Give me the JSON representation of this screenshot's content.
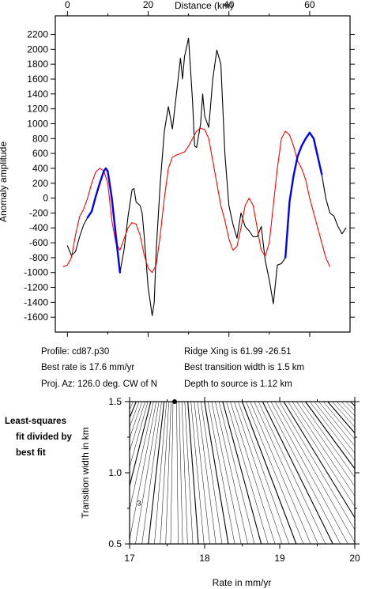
{
  "chart_data": [
    {
      "type": "line",
      "xlabel_top": "Distance (km)",
      "ylabel": "Anomaly amplitude",
      "xlim": [
        -3,
        70
      ],
      "ylim": [
        -1800,
        2450
      ],
      "x_ticks": [
        0,
        20,
        40,
        60
      ],
      "y_ticks": [
        -1600,
        -1400,
        -1200,
        -1000,
        -800,
        -600,
        -400,
        -200,
        0,
        200,
        400,
        600,
        800,
        1000,
        1200,
        1400,
        1600,
        1800,
        2000,
        2200
      ],
      "series": [
        {
          "role": "observed",
          "color": "#000000",
          "points": [
            [
              0,
              -640
            ],
            [
              1,
              -770
            ],
            [
              2,
              -720
            ],
            [
              3,
              -520
            ],
            [
              4,
              -360
            ],
            [
              5,
              -260
            ],
            [
              6,
              -180
            ],
            [
              7,
              20
            ],
            [
              8,
              200
            ],
            [
              9,
              360
            ],
            [
              9.5,
              400
            ],
            [
              10,
              360
            ],
            [
              11,
              0
            ],
            [
              12,
              -500
            ],
            [
              13,
              -1000
            ],
            [
              14,
              -700
            ],
            [
              15,
              -250
            ],
            [
              16,
              110
            ],
            [
              16.5,
              130
            ],
            [
              17,
              -50
            ],
            [
              18,
              -100
            ],
            [
              18.5,
              -200
            ],
            [
              19,
              -500
            ],
            [
              20,
              -1200
            ],
            [
              21,
              -1580
            ],
            [
              21.5,
              -1400
            ],
            [
              22,
              -700
            ],
            [
              23,
              200
            ],
            [
              24,
              900
            ],
            [
              25,
              1230
            ],
            [
              26,
              930
            ],
            [
              27,
              1400
            ],
            [
              28,
              1880
            ],
            [
              28.5,
              1600
            ],
            [
              29,
              1900
            ],
            [
              30,
              2150
            ],
            [
              31,
              1300
            ],
            [
              31.5,
              700
            ],
            [
              32,
              680
            ],
            [
              33,
              1000
            ],
            [
              33.5,
              1400
            ],
            [
              34,
              1100
            ],
            [
              35,
              950
            ],
            [
              36,
              1600
            ],
            [
              37,
              1990
            ],
            [
              38,
              1800
            ],
            [
              39,
              600
            ],
            [
              40,
              -100
            ],
            [
              41,
              -350
            ],
            [
              42,
              -540
            ],
            [
              43,
              -200
            ],
            [
              44,
              -380
            ],
            [
              45,
              -440
            ],
            [
              46,
              -520
            ],
            [
              47,
              -520
            ],
            [
              48,
              -380
            ],
            [
              49,
              -840
            ],
            [
              50,
              -1100
            ],
            [
              51,
              -1420
            ],
            [
              52,
              -900
            ],
            [
              53,
              -880
            ],
            [
              54,
              -800
            ],
            [
              55,
              -50
            ],
            [
              56,
              300
            ],
            [
              57,
              560
            ],
            [
              58,
              700
            ],
            [
              59,
              800
            ],
            [
              60,
              880
            ],
            [
              61,
              800
            ],
            [
              62,
              560
            ],
            [
              63,
              320
            ],
            [
              64,
              0
            ],
            [
              65,
              -200
            ],
            [
              66,
              -240
            ],
            [
              67,
              -380
            ],
            [
              68,
              -480
            ],
            [
              69,
              -400
            ]
          ]
        },
        {
          "role": "model",
          "color": "#ff0000",
          "points": [
            [
              -1,
              -920
            ],
            [
              0,
              -900
            ],
            [
              1,
              -800
            ],
            [
              2,
              -500
            ],
            [
              3,
              -250
            ],
            [
              4,
              -150
            ],
            [
              5,
              0
            ],
            [
              6,
              200
            ],
            [
              7,
              350
            ],
            [
              8,
              400
            ],
            [
              9,
              370
            ],
            [
              10,
              200
            ],
            [
              11,
              -300
            ],
            [
              12,
              -600
            ],
            [
              13,
              -700
            ],
            [
              14,
              -550
            ],
            [
              15,
              -400
            ],
            [
              16,
              -330
            ],
            [
              17,
              -350
            ],
            [
              18,
              -500
            ],
            [
              19,
              -760
            ],
            [
              20,
              -940
            ],
            [
              21,
              -1000
            ],
            [
              22,
              -900
            ],
            [
              23,
              -500
            ],
            [
              24,
              0
            ],
            [
              25,
              400
            ],
            [
              26,
              550
            ],
            [
              27,
              580
            ],
            [
              28,
              600
            ],
            [
              29,
              620
            ],
            [
              30,
              700
            ],
            [
              31,
              800
            ],
            [
              32,
              900
            ],
            [
              33,
              940
            ],
            [
              34,
              920
            ],
            [
              35,
              800
            ],
            [
              36,
              500
            ],
            [
              37,
              200
            ],
            [
              38,
              -100
            ],
            [
              39,
              -300
            ],
            [
              40,
              -550
            ],
            [
              41,
              -700
            ],
            [
              42,
              -650
            ],
            [
              43,
              -400
            ],
            [
              44,
              -100
            ],
            [
              45,
              0
            ],
            [
              46,
              -100
            ],
            [
              47,
              -400
            ],
            [
              48,
              -700
            ],
            [
              49,
              -780
            ],
            [
              50,
              -600
            ],
            [
              51,
              -100
            ],
            [
              52,
              400
            ],
            [
              53,
              800
            ],
            [
              54,
              900
            ],
            [
              55,
              850
            ],
            [
              56,
              700
            ],
            [
              57,
              500
            ],
            [
              58,
              400
            ],
            [
              59,
              250
            ],
            [
              60,
              0
            ],
            [
              61,
              -200
            ],
            [
              62,
              -400
            ],
            [
              63,
              -600
            ],
            [
              64,
              -800
            ],
            [
              65,
              -920
            ]
          ]
        },
        {
          "role": "fit-window-1",
          "color": "#0000ff",
          "points": [
            [
              5,
              -260
            ],
            [
              6,
              -180
            ],
            [
              7,
              20
            ],
            [
              8,
              200
            ],
            [
              9,
              360
            ],
            [
              9.5,
              400
            ],
            [
              10,
              360
            ],
            [
              11,
              0
            ],
            [
              12,
              -500
            ],
            [
              13,
              -1000
            ]
          ]
        },
        {
          "role": "fit-window-2",
          "color": "#0000ff",
          "points": [
            [
              54,
              -800
            ],
            [
              55,
              -50
            ],
            [
              56,
              300
            ],
            [
              57,
              560
            ],
            [
              58,
              700
            ],
            [
              59,
              800
            ],
            [
              60,
              880
            ],
            [
              61,
              800
            ],
            [
              62,
              560
            ],
            [
              63,
              320
            ]
          ]
        }
      ]
    },
    {
      "type": "contour",
      "xlabel": "Rate in mm/yr",
      "ylabel": "Transition width in km",
      "xlim": [
        17,
        20
      ],
      "ylim": [
        0.5,
        1.5
      ],
      "x_ticks": [
        17,
        18,
        19,
        20
      ],
      "y_ticks": [
        0.5,
        1.0,
        1.5
      ],
      "best_fit": [
        17.6,
        1.5
      ],
      "contour_label": "3",
      "contour_label_pos": [
        17.1,
        0.77
      ]
    }
  ],
  "info": {
    "profile": "Profile: cd87.p30",
    "best_rate": "Best rate is 17.6 mm/yr",
    "proj_az": "Proj. Az: 126.0 deg. CW of N",
    "ridge_xing": "Ridge Xing is 61.99 -26.51",
    "best_width": "Best transition width is 1.5 km",
    "depth": "Depth to source is   1.12 km"
  },
  "side_note": [
    "Least-squares",
    "fit divided by",
    "best fit"
  ]
}
